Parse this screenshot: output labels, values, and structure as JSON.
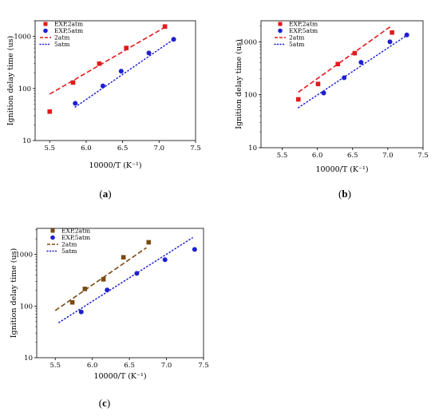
{
  "chart_data": [
    {
      "type": "scatter",
      "panel_label": "(a)",
      "panel_letter": "a",
      "xlabel": "10000/T (K⁻¹)",
      "ylabel": "Ignition delay time (us)",
      "xlim": [
        5.3,
        7.5
      ],
      "ylim": [
        10,
        2000
      ],
      "yscale": "log",
      "xticks": [
        "5.5",
        "6.0",
        "6.5",
        "7.0",
        "7.5"
      ],
      "yticks": [
        "10",
        "100",
        "1000"
      ],
      "legend_position": "top-left",
      "grid": false,
      "series": [
        {
          "name": "EXP,2atm",
          "kind": "scatter",
          "marker": "square",
          "color": "#e31a1c",
          "x": [
            5.5,
            5.82,
            6.18,
            6.55,
            7.08
          ],
          "y": [
            36,
            130,
            300,
            600,
            1550
          ]
        },
        {
          "name": "EXP,5atm",
          "kind": "scatter",
          "marker": "circle",
          "color": "#1f1fd1",
          "x": [
            5.85,
            6.23,
            6.48,
            6.86,
            7.2
          ],
          "y": [
            52,
            112,
            215,
            480,
            880
          ]
        },
        {
          "name": "2atm",
          "kind": "line",
          "style": "dashed",
          "color": "#e31a1c",
          "x": [
            5.5,
            7.06
          ],
          "y": [
            78,
            1450
          ]
        },
        {
          "name": "5atm",
          "kind": "line",
          "style": "dotted",
          "color": "#1f1fd1",
          "x": [
            5.85,
            7.2
          ],
          "y": [
            44,
            880
          ]
        }
      ]
    },
    {
      "type": "scatter",
      "panel_label": "(b)",
      "panel_letter": "b",
      "xlabel": "10000/T (K⁻¹)",
      "ylabel": "Ignition delay time (us)",
      "xlim": [
        5.2,
        7.5
      ],
      "ylim": [
        10,
        2500
      ],
      "yscale": "log",
      "xticks": [
        "5.5",
        "6.0",
        "6.5",
        "7.0",
        "7.5"
      ],
      "yticks": [
        "10",
        "100",
        "1000"
      ],
      "legend_position": "top-left",
      "grid": false,
      "series": [
        {
          "name": "EXP,2atm",
          "kind": "scatter",
          "marker": "square",
          "color": "#e31a1c",
          "x": [
            5.73,
            6.01,
            6.29,
            6.53,
            7.06
          ],
          "y": [
            82,
            160,
            380,
            610,
            1500
          ]
        },
        {
          "name": "EXP,5atm",
          "kind": "scatter",
          "marker": "circle",
          "color": "#1f1fd1",
          "x": [
            6.09,
            6.38,
            6.62,
            7.03,
            7.27
          ],
          "y": [
            108,
            210,
            410,
            1000,
            1350
          ]
        },
        {
          "name": "2atm",
          "kind": "line",
          "style": "dashed",
          "color": "#e31a1c",
          "x": [
            5.73,
            7.04
          ],
          "y": [
            112,
            1950
          ]
        },
        {
          "name": "5atm",
          "kind": "line",
          "style": "dotted",
          "color": "#1f1fd1",
          "x": [
            5.73,
            7.26
          ],
          "y": [
            57,
            1300
          ]
        }
      ]
    },
    {
      "type": "scatter",
      "panel_label": "(c)",
      "panel_letter": "c",
      "xlabel": "10000/T (K⁻¹)",
      "ylabel": "Ignition delay time (us)",
      "xlim": [
        5.25,
        7.5
      ],
      "ylim": [
        10,
        3200
      ],
      "yscale": "log",
      "xticks": [
        "5.5",
        "6.0",
        "6.5",
        "7.0",
        "7.5"
      ],
      "yticks": [
        "10",
        "100",
        "1000"
      ],
      "legend_position": "top-left",
      "grid": false,
      "series": [
        {
          "name": "EXP,2atm",
          "kind": "scatter",
          "marker": "square",
          "color": "#7a4a12",
          "x": [
            5.73,
            5.9,
            6.15,
            6.42,
            6.76
          ],
          "y": [
            118,
            215,
            330,
            880,
            1720
          ]
        },
        {
          "name": "EXP,5atm",
          "kind": "scatter",
          "marker": "circle",
          "color": "#1f1fd1",
          "x": [
            5.85,
            6.2,
            6.6,
            6.98,
            7.38
          ],
          "y": [
            77,
            205,
            430,
            790,
            1250
          ]
        },
        {
          "name": "2atm",
          "kind": "line",
          "style": "dashed",
          "color": "#7a4a12",
          "x": [
            5.5,
            6.73
          ],
          "y": [
            82,
            1350
          ]
        },
        {
          "name": "5atm",
          "kind": "line",
          "style": "dotted",
          "color": "#1f1fd1",
          "x": [
            5.55,
            7.35
          ],
          "y": [
            48,
            2100
          ]
        }
      ]
    }
  ]
}
